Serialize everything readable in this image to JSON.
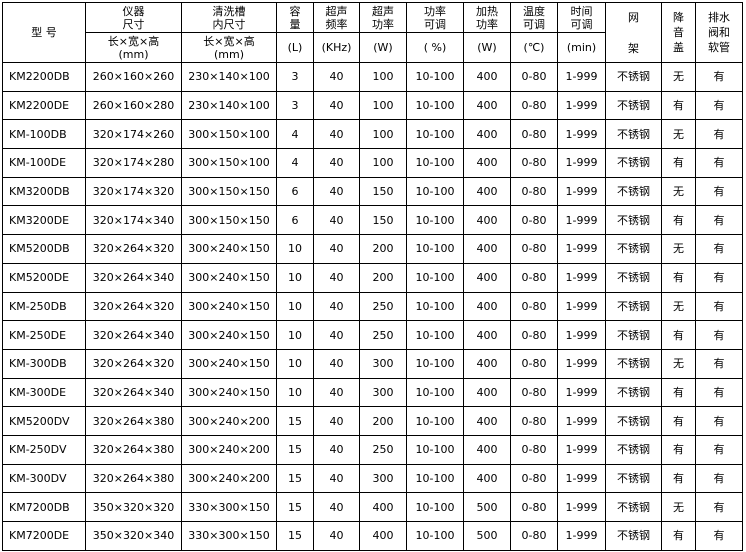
{
  "headers": {
    "model": "型 号",
    "instrument_size": [
      "仪器",
      "尺寸"
    ],
    "instrument_size_unit": [
      "长×宽×高",
      "(mm)"
    ],
    "tank_size": [
      "清洗槽",
      "内尺寸"
    ],
    "tank_size_unit": [
      "长×宽×高",
      "(mm)"
    ],
    "capacity": [
      "容",
      "量"
    ],
    "capacity_unit": "(L)",
    "freq": [
      "超声",
      "频率"
    ],
    "freq_unit": "(KHz)",
    "power": [
      "超声",
      "功率"
    ],
    "power_unit": "(W)",
    "power_adj": [
      "功率",
      "可调"
    ],
    "power_adj_unit": "( %)",
    "heat": [
      "加热",
      "功率"
    ],
    "heat_unit": "(W)",
    "temp": [
      "温度",
      "可调"
    ],
    "temp_unit": "(℃)",
    "time": [
      "时间",
      "可调"
    ],
    "time_unit": "(min)",
    "rack": [
      "网",
      "架"
    ],
    "lid": [
      "降",
      "音",
      "盖"
    ],
    "drain": [
      "排水",
      "阀和",
      "软管"
    ]
  },
  "rows": [
    [
      "KM2200DB",
      "260×160×260",
      "230×140×100",
      "3",
      "40",
      "100",
      "10-100",
      "400",
      "0-80",
      "1-999",
      "不锈钢",
      "无",
      "有"
    ],
    [
      "KM2200DE",
      "260×160×280",
      "230×140×100",
      "3",
      "40",
      "100",
      "10-100",
      "400",
      "0-80",
      "1-999",
      "不锈钢",
      "有",
      "有"
    ],
    [
      "KM-100DB",
      "320×174×260",
      "300×150×100",
      "4",
      "40",
      "100",
      "10-100",
      "400",
      "0-80",
      "1-999",
      "不锈钢",
      "无",
      "有"
    ],
    [
      "KM-100DE",
      "320×174×280",
      "300×150×100",
      "4",
      "40",
      "100",
      "10-100",
      "400",
      "0-80",
      "1-999",
      "不锈钢",
      "有",
      "有"
    ],
    [
      "KM3200DB",
      "320×174×320",
      "300×150×150",
      "6",
      "40",
      "150",
      "10-100",
      "400",
      "0-80",
      "1-999",
      "不锈钢",
      "无",
      "有"
    ],
    [
      "KM3200DE",
      "320×174×340",
      "300×150×150",
      "6",
      "40",
      "150",
      "10-100",
      "400",
      "0-80",
      "1-999",
      "不锈钢",
      "有",
      "有"
    ],
    [
      "KM5200DB",
      "320×264×320",
      "300×240×150",
      "10",
      "40",
      "200",
      "10-100",
      "400",
      "0-80",
      "1-999",
      "不锈钢",
      "无",
      "有"
    ],
    [
      "KM5200DE",
      "320×264×340",
      "300×240×150",
      "10",
      "40",
      "200",
      "10-100",
      "400",
      "0-80",
      "1-999",
      "不锈钢",
      "有",
      "有"
    ],
    [
      "KM-250DB",
      "320×264×320",
      "300×240×150",
      "10",
      "40",
      "250",
      "10-100",
      "400",
      "0-80",
      "1-999",
      "不锈钢",
      "无",
      "有"
    ],
    [
      "KM-250DE",
      "320×264×340",
      "300×240×150",
      "10",
      "40",
      "250",
      "10-100",
      "400",
      "0-80",
      "1-999",
      "不锈钢",
      "有",
      "有"
    ],
    [
      "KM-300DB",
      "320×264×320",
      "300×240×150",
      "10",
      "40",
      "300",
      "10-100",
      "400",
      "0-80",
      "1-999",
      "不锈钢",
      "无",
      "有"
    ],
    [
      "KM-300DE",
      "320×264×340",
      "300×240×150",
      "10",
      "40",
      "300",
      "10-100",
      "400",
      "0-80",
      "1-999",
      "不锈钢",
      "有",
      "有"
    ],
    [
      "KM5200DV",
      "320×264×380",
      "300×240×200",
      "15",
      "40",
      "200",
      "10-100",
      "400",
      "0-80",
      "1-999",
      "不锈钢",
      "有",
      "有"
    ],
    [
      "KM-250DV",
      "320×264×380",
      "300×240×200",
      "15",
      "40",
      "250",
      "10-100",
      "400",
      "0-80",
      "1-999",
      "不锈钢",
      "有",
      "有"
    ],
    [
      "KM-300DV",
      "320×264×380",
      "300×240×200",
      "15",
      "40",
      "300",
      "10-100",
      "400",
      "0-80",
      "1-999",
      "不锈钢",
      "有",
      "有"
    ],
    [
      "KM7200DB",
      "350×320×320",
      "330×300×150",
      "15",
      "40",
      "400",
      "10-100",
      "500",
      "0-80",
      "1-999",
      "不锈钢",
      "无",
      "有"
    ],
    [
      "KM7200DE",
      "350×320×340",
      "330×300×150",
      "15",
      "40",
      "400",
      "10-100",
      "500",
      "0-80",
      "1-999",
      "不锈钢",
      "有",
      "有"
    ]
  ]
}
